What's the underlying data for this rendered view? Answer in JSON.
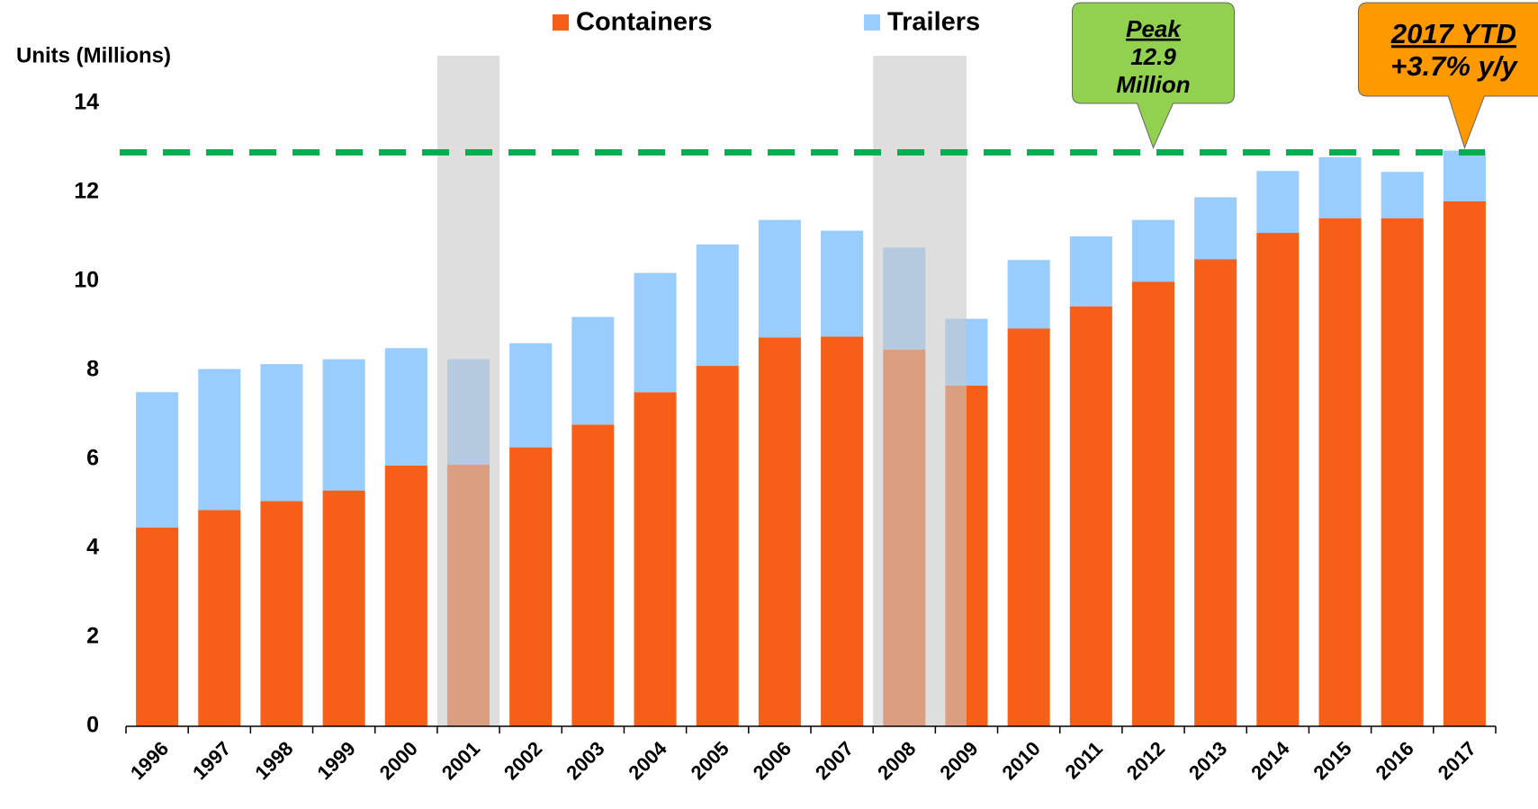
{
  "chart_data": {
    "type": "stacked_bar",
    "y_axis_label": "Units (Millions)",
    "categories": [
      "1996",
      "1997",
      "1998",
      "1999",
      "2000",
      "2001",
      "2002",
      "2003",
      "2004",
      "2005",
      "2006",
      "2007",
      "2008",
      "2009",
      "2010",
      "2011",
      "2012",
      "2013",
      "2014",
      "2015",
      "2016",
      "2017"
    ],
    "series": [
      {
        "name": "Containers",
        "color": "#f75f18",
        "values": [
          4.47,
          4.86,
          5.06,
          5.3,
          5.86,
          5.88,
          6.27,
          6.78,
          7.51,
          8.1,
          8.74,
          8.76,
          8.47,
          7.66,
          8.94,
          9.44,
          9.99,
          10.5,
          11.09,
          11.42,
          11.42,
          11.8
        ]
      },
      {
        "name": "Trailers",
        "color": "#99ccff",
        "values": [
          3.04,
          3.17,
          3.08,
          2.95,
          2.64,
          2.37,
          2.34,
          2.42,
          2.68,
          2.73,
          2.64,
          2.38,
          2.29,
          1.5,
          1.54,
          1.57,
          1.39,
          1.39,
          1.39,
          1.37,
          1.04,
          1.14
        ]
      }
    ],
    "ylim": [
      0,
      14
    ],
    "yticks": [
      0,
      2,
      4,
      6,
      8,
      10,
      12,
      14
    ],
    "reference_line": {
      "value": 12.9,
      "color": "#00b050"
    },
    "shaded_periods": [
      [
        "2001",
        "2001"
      ],
      [
        "2008",
        "2009"
      ]
    ],
    "annotations": [
      {
        "lines": [
          "Peak",
          "12.9",
          "Million"
        ],
        "at": "2012",
        "color": "#92d050"
      },
      {
        "lines": [
          "2017 YTD",
          "+3.7% y/y"
        ],
        "at": "2017",
        "color": "#ff9900"
      }
    ]
  }
}
